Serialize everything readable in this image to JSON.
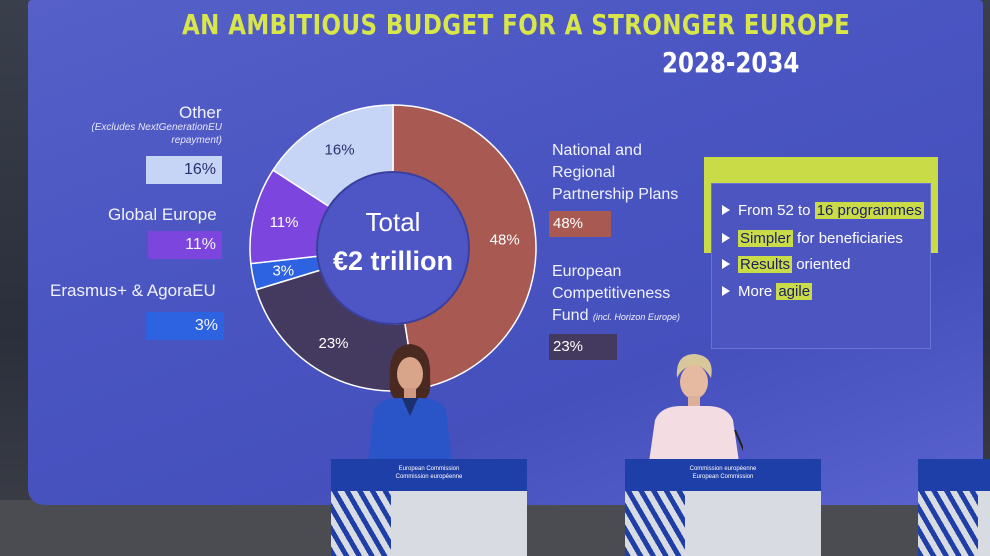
{
  "slide": {
    "title": "AN AMBITIOUS BUDGET FOR A STRONGER EUROPE",
    "years": "2028-2034",
    "total_line1": "Total",
    "total_line2": "€2 trillion"
  },
  "legend_left": [
    {
      "name": "Other",
      "note": "(Excludes NextGenerationEU repayment)",
      "value": "16%",
      "color": "#c6d4f5"
    },
    {
      "name": "Global Europe",
      "value": "11%",
      "color": "#7c45de"
    },
    {
      "name": "Erasmus+ & AgoraEU",
      "value": "3%",
      "color": "#2d62e0"
    }
  ],
  "legend_right": [
    {
      "name_line1": "National and",
      "name_line2": "Regional",
      "name_line3": "Partnership Plans",
      "value": "48%",
      "color": "#a85a52"
    },
    {
      "name_line1": "European",
      "name_line2": "Competitiveness",
      "name_line3": "Fund",
      "note": "(incl. Horizon Europe)",
      "value": "23%",
      "color": "#44395e"
    }
  ],
  "chart_data": {
    "type": "pie",
    "donut": true,
    "slices": [
      {
        "label": "National and Regional Partnership Plans",
        "value": 48,
        "text": "48%",
        "color": "#a85a52"
      },
      {
        "label": "European Competitiveness Fund",
        "value": 23,
        "text": "23%",
        "color": "#44395e"
      },
      {
        "label": "Erasmus+ & AgoraEU",
        "value": 3,
        "text": "3%",
        "color": "#2d62e0"
      },
      {
        "label": "Global Europe",
        "value": 11,
        "text": "11%",
        "color": "#7c45de"
      },
      {
        "label": "Other",
        "value": 16,
        "text": "16%",
        "color": "#c6d4f5"
      }
    ]
  },
  "panel": {
    "b1_pre": "From 52 to ",
    "b1_hl": "16 programmes",
    "b2_hl": "Simpler",
    "b2_post": " for beneficiaries",
    "b3_hl": "Results",
    "b3_post": " oriented",
    "b4_pre": "More ",
    "b4_hl": "agile"
  },
  "podiums": {
    "left_line1": "European Commission",
    "left_line2": "Commission européenne",
    "mid_line1": "Commission européenne",
    "mid_line2": "European Commission"
  }
}
